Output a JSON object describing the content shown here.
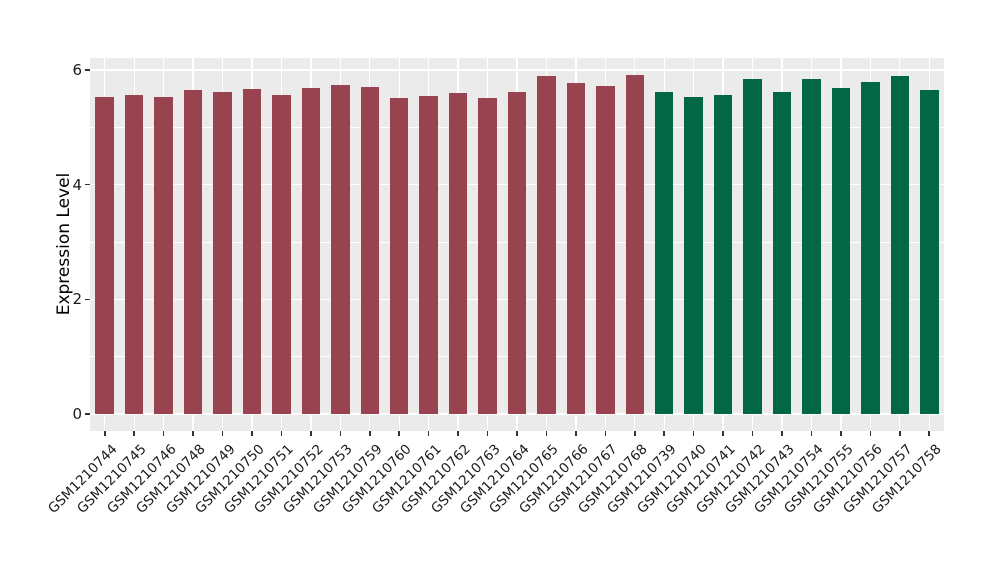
{
  "chart_data": {
    "type": "bar",
    "title": "",
    "xlabel": "",
    "ylabel": "Expression Level",
    "ylim": [
      0,
      6.21
    ],
    "yticks": [
      0,
      2,
      4,
      6
    ],
    "yticks_minor": [
      1,
      3,
      5
    ],
    "grid": "on",
    "legend": "none",
    "panel_background": "#EBEBEB",
    "gridline_color": "#FFFFFF",
    "tick_color": "#333333",
    "label_color": "#1a1a1a",
    "groups": [
      {
        "name": "left-group",
        "color": "#9A4350"
      },
      {
        "name": "right-group",
        "color": "#016745"
      }
    ],
    "bars": [
      {
        "label": "GSM1210744",
        "value": 5.53,
        "group": 0
      },
      {
        "label": "GSM1210745",
        "value": 5.57,
        "group": 0
      },
      {
        "label": "GSM1210746",
        "value": 5.53,
        "group": 0
      },
      {
        "label": "GSM1210748",
        "value": 5.65,
        "group": 0
      },
      {
        "label": "GSM1210749",
        "value": 5.62,
        "group": 0
      },
      {
        "label": "GSM1210750",
        "value": 5.67,
        "group": 0
      },
      {
        "label": "GSM1210751",
        "value": 5.57,
        "group": 0
      },
      {
        "label": "GSM1210752",
        "value": 5.68,
        "group": 0
      },
      {
        "label": "GSM1210753",
        "value": 5.74,
        "group": 0
      },
      {
        "label": "GSM1210759",
        "value": 5.7,
        "group": 0
      },
      {
        "label": "GSM1210760",
        "value": 5.52,
        "group": 0
      },
      {
        "label": "GSM1210761",
        "value": 5.55,
        "group": 0
      },
      {
        "label": "GSM1210762",
        "value": 5.6,
        "group": 0
      },
      {
        "label": "GSM1210763",
        "value": 5.51,
        "group": 0
      },
      {
        "label": "GSM1210764",
        "value": 5.62,
        "group": 0
      },
      {
        "label": "GSM1210765",
        "value": 5.9,
        "group": 0
      },
      {
        "label": "GSM1210766",
        "value": 5.77,
        "group": 0
      },
      {
        "label": "GSM1210767",
        "value": 5.72,
        "group": 0
      },
      {
        "label": "GSM1210768",
        "value": 5.92,
        "group": 0
      },
      {
        "label": "GSM1210739",
        "value": 5.62,
        "group": 1
      },
      {
        "label": "GSM1210740",
        "value": 5.53,
        "group": 1
      },
      {
        "label": "GSM1210741",
        "value": 5.57,
        "group": 1
      },
      {
        "label": "GSM1210742",
        "value": 5.84,
        "group": 1
      },
      {
        "label": "GSM1210743",
        "value": 5.61,
        "group": 1
      },
      {
        "label": "GSM1210754",
        "value": 5.85,
        "group": 1
      },
      {
        "label": "GSM1210755",
        "value": 5.68,
        "group": 1
      },
      {
        "label": "GSM1210756",
        "value": 5.79,
        "group": 1
      },
      {
        "label": "GSM1210757",
        "value": 5.9,
        "group": 1
      },
      {
        "label": "GSM1210758",
        "value": 5.66,
        "group": 1
      }
    ]
  }
}
